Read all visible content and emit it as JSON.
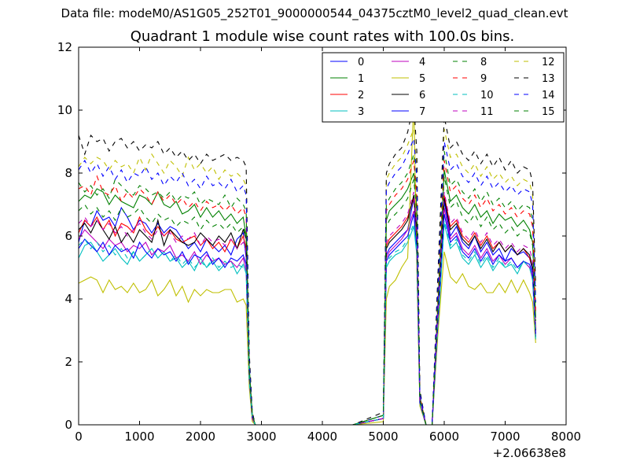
{
  "figure": {
    "suptitle": "Data file: modeM0/AS1G05_252T01_9000000544_04375cztM0_level2_quad_clean.evt",
    "title": "Quadrant 1 module wise count rates with 100.0s bins."
  },
  "chart_data": {
    "type": "line",
    "title": "Quadrant 1 module wise count rates with 100.0s bins.",
    "xlabel": "",
    "ylabel": "",
    "x_offset_label": "+2.06638e8",
    "xlim": [
      0,
      8000
    ],
    "ylim": [
      0,
      12
    ],
    "xticks": [
      0,
      1000,
      2000,
      3000,
      4000,
      5000,
      6000,
      7000,
      8000
    ],
    "yticks": [
      0,
      2,
      4,
      6,
      8,
      10,
      12
    ],
    "grid": false,
    "legend_placement": "top-right",
    "x": [
      0,
      100,
      200,
      300,
      400,
      500,
      600,
      700,
      800,
      900,
      1000,
      1100,
      1200,
      1300,
      1400,
      1500,
      1600,
      1700,
      1800,
      1900,
      2000,
      2100,
      2200,
      2300,
      2400,
      2500,
      2600,
      2700,
      2750,
      2800,
      2850,
      2900,
      3000,
      3500,
      4000,
      4500,
      5000,
      5050,
      5100,
      5200,
      5300,
      5400,
      5500,
      5550,
      5600,
      5700,
      5800,
      5900,
      6000,
      6100,
      6200,
      6300,
      6400,
      6500,
      6600,
      6700,
      6800,
      6900,
      7000,
      7100,
      7200,
      7300,
      7400,
      7450,
      7500
    ],
    "series": [
      {
        "name": "0",
        "color": "#0000ff",
        "dash": false,
        "values": [
          5.8,
          6.5,
          6.3,
          6.8,
          6.5,
          6.6,
          6.3,
          6.9,
          6.6,
          6.2,
          6.5,
          6.4,
          6.1,
          6.4,
          6.1,
          6.3,
          6.2,
          5.9,
          5.6,
          5.8,
          5.5,
          5.9,
          5.7,
          5.5,
          5.7,
          5.4,
          5.9,
          6.1,
          5.3,
          1.5,
          0.2,
          0,
          0,
          0,
          0,
          0,
          0.2,
          5.4,
          5.6,
          5.8,
          6.0,
          6.2,
          7.2,
          6.0,
          0.8,
          0,
          0,
          3.5,
          7.1,
          6.0,
          6.3,
          5.8,
          5.6,
          6.0,
          5.5,
          5.8,
          5.4,
          5.6,
          5.2,
          5.6,
          5.4,
          5.5,
          5.3,
          4.9,
          2.9
        ]
      },
      {
        "name": "1",
        "color": "#008000",
        "dash": false,
        "values": [
          7.1,
          7.3,
          7.2,
          7.5,
          7.4,
          7.0,
          7.3,
          7.1,
          7.0,
          6.9,
          7.3,
          7.2,
          7.0,
          7.4,
          7.0,
          6.9,
          7.1,
          6.7,
          6.8,
          7.0,
          6.6,
          6.9,
          6.6,
          6.8,
          6.5,
          6.7,
          6.4,
          6.6,
          6.0,
          1.7,
          0.3,
          0,
          0,
          0,
          0,
          0,
          0.3,
          6.5,
          6.8,
          7.0,
          7.2,
          7.5,
          8.0,
          6.9,
          0.9,
          0,
          0,
          4.0,
          8.1,
          7.1,
          7.3,
          6.9,
          6.7,
          7.0,
          6.6,
          6.8,
          6.4,
          6.7,
          6.5,
          6.6,
          6.3,
          6.5,
          6.2,
          5.8,
          3.4
        ]
      },
      {
        "name": "2",
        "color": "#ff0000",
        "dash": false,
        "values": [
          6.1,
          6.5,
          6.3,
          6.6,
          6.2,
          6.5,
          6.0,
          6.4,
          6.3,
          6.1,
          6.6,
          6.2,
          6.0,
          6.3,
          6.0,
          6.2,
          5.9,
          5.8,
          5.9,
          6.0,
          5.7,
          5.9,
          5.6,
          5.8,
          5.5,
          5.9,
          5.6,
          6.0,
          5.6,
          1.6,
          0.2,
          0,
          0,
          0,
          0,
          0,
          0.2,
          5.7,
          5.9,
          6.1,
          6.3,
          6.6,
          7.2,
          6.2,
          0.8,
          0,
          0,
          3.7,
          7.3,
          6.3,
          6.5,
          6.0,
          5.8,
          6.1,
          5.7,
          6.0,
          5.6,
          5.8,
          5.5,
          5.7,
          5.4,
          5.6,
          5.3,
          5.0,
          3.0
        ]
      },
      {
        "name": "3",
        "color": "#00bfbf",
        "dash": false,
        "values": [
          5.3,
          5.7,
          5.8,
          5.5,
          5.2,
          5.4,
          5.6,
          5.3,
          5.1,
          5.5,
          5.2,
          5.4,
          5.6,
          5.3,
          5.5,
          5.2,
          5.3,
          5.0,
          5.2,
          4.9,
          5.3,
          5.0,
          5.2,
          4.9,
          5.1,
          5.2,
          4.8,
          5.1,
          4.8,
          1.4,
          0.2,
          0,
          0,
          0,
          0,
          0,
          0.2,
          5.0,
          5.2,
          5.4,
          5.5,
          5.8,
          6.3,
          5.4,
          0.7,
          0,
          0,
          3.2,
          6.4,
          5.6,
          5.8,
          5.3,
          5.1,
          5.4,
          5.0,
          5.3,
          4.9,
          5.2,
          5.0,
          5.1,
          4.8,
          5.2,
          5.0,
          4.6,
          2.7
        ]
      },
      {
        "name": "4",
        "color": "#bf00bf",
        "dash": false,
        "values": [
          5.9,
          6.2,
          6.0,
          5.8,
          5.6,
          5.9,
          5.7,
          5.8,
          5.5,
          5.7,
          5.6,
          5.8,
          5.4,
          5.6,
          5.5,
          5.7,
          5.3,
          5.4,
          5.2,
          5.5,
          5.1,
          5.4,
          5.2,
          5.3,
          5.1,
          5.2,
          5.0,
          5.3,
          4.9,
          1.5,
          0.2,
          0,
          0,
          0,
          0,
          0,
          0.2,
          5.3,
          5.5,
          5.7,
          5.9,
          6.2,
          6.8,
          5.7,
          0.7,
          0,
          0,
          3.4,
          6.9,
          5.9,
          6.1,
          5.6,
          5.4,
          5.7,
          5.3,
          5.6,
          5.2,
          5.4,
          5.1,
          5.3,
          5.0,
          5.2,
          5.0,
          4.7,
          2.8
        ]
      },
      {
        "name": "5",
        "color": "#bfbf00",
        "dash": false,
        "values": [
          4.5,
          4.6,
          4.7,
          4.6,
          4.2,
          4.6,
          4.3,
          4.4,
          4.2,
          4.5,
          4.2,
          4.3,
          4.6,
          4.1,
          4.3,
          4.6,
          4.1,
          4.4,
          3.9,
          4.3,
          4.1,
          4.3,
          4.2,
          4.2,
          4.3,
          4.3,
          3.9,
          4.0,
          3.8,
          1.2,
          0.1,
          0,
          0,
          0,
          0,
          0,
          0.1,
          4.0,
          4.4,
          4.6,
          5.0,
          5.3,
          10.3,
          5.0,
          0.6,
          0,
          0,
          3.0,
          5.5,
          4.7,
          4.5,
          4.8,
          4.4,
          4.3,
          4.5,
          4.2,
          4.2,
          4.5,
          4.2,
          4.6,
          4.2,
          4.6,
          4.2,
          3.9,
          2.6
        ]
      },
      {
        "name": "6",
        "color": "#000000",
        "dash": false,
        "values": [
          6.2,
          6.4,
          6.1,
          6.5,
          6.2,
          5.9,
          6.3,
          5.8,
          6.1,
          5.8,
          6.2,
          6.0,
          5.8,
          6.5,
          5.7,
          6.2,
          6.0,
          5.8,
          5.7,
          5.8,
          6.1,
          5.9,
          5.7,
          6.0,
          5.8,
          6.1,
          5.6,
          6.2,
          5.9,
          1.6,
          0.2,
          0,
          0,
          0,
          0,
          0,
          0.2,
          5.6,
          5.8,
          6.0,
          6.2,
          6.5,
          7.3,
          6.1,
          0.8,
          0,
          0,
          3.6,
          7.2,
          6.2,
          6.4,
          5.9,
          5.7,
          6.0,
          5.6,
          5.9,
          5.5,
          5.8,
          5.5,
          5.7,
          5.4,
          5.6,
          5.4,
          5.0,
          3.0
        ]
      },
      {
        "name": "7",
        "color": "#0000ff",
        "dash": false,
        "values": [
          5.6,
          5.9,
          5.7,
          5.5,
          5.8,
          5.4,
          5.7,
          5.5,
          5.6,
          5.3,
          5.8,
          5.5,
          5.3,
          5.6,
          5.4,
          5.5,
          5.2,
          5.5,
          5.1,
          5.4,
          5.3,
          5.5,
          5.1,
          5.3,
          5.0,
          5.3,
          5.2,
          5.4,
          5.1,
          1.5,
          0.2,
          0,
          0,
          0,
          0,
          0,
          0.2,
          5.2,
          5.4,
          5.6,
          5.8,
          6.0,
          6.7,
          5.6,
          0.7,
          0,
          0,
          3.4,
          6.7,
          5.8,
          6.0,
          5.5,
          5.3,
          5.6,
          5.2,
          5.5,
          5.1,
          5.4,
          5.2,
          5.3,
          5.0,
          5.2,
          5.1,
          4.8,
          2.8
        ]
      },
      {
        "name": "8",
        "color": "#008000",
        "dash": true,
        "values": [
          7.7,
          7.4,
          7.6,
          7.3,
          7.5,
          7.2,
          7.8,
          7.6,
          7.4,
          7.3,
          7.6,
          7.5,
          7.3,
          7.4,
          7.2,
          7.4,
          7.1,
          7.3,
          7.2,
          7.4,
          7.0,
          7.2,
          7.1,
          7.0,
          7.3,
          6.9,
          7.2,
          7.0,
          6.8,
          1.9,
          0.3,
          0,
          0,
          0,
          0,
          0,
          0.3,
          7.0,
          7.2,
          7.5,
          7.7,
          8.0,
          8.6,
          7.4,
          0.9,
          0,
          0,
          4.2,
          8.7,
          7.6,
          7.8,
          7.4,
          7.2,
          7.5,
          7.1,
          7.4,
          7.0,
          7.2,
          6.9,
          7.1,
          6.8,
          7.0,
          6.9,
          6.5,
          3.7
        ]
      },
      {
        "name": "9",
        "color": "#ff0000",
        "dash": true,
        "values": [
          7.5,
          7.6,
          7.3,
          7.9,
          7.4,
          7.3,
          7.6,
          7.1,
          7.4,
          7.2,
          7.5,
          7.3,
          7.0,
          7.4,
          7.1,
          7.3,
          7.0,
          7.2,
          6.9,
          7.1,
          6.8,
          7.1,
          6.9,
          7.0,
          6.8,
          7.0,
          6.7,
          6.9,
          6.6,
          1.8,
          0.3,
          0,
          0,
          0,
          0,
          0,
          0.3,
          6.8,
          7.0,
          7.3,
          7.5,
          7.8,
          8.4,
          7.2,
          0.9,
          0,
          0,
          4.1,
          8.4,
          7.4,
          7.6,
          7.2,
          7.0,
          7.3,
          6.9,
          7.2,
          6.8,
          7.0,
          6.7,
          6.9,
          6.6,
          6.8,
          6.7,
          6.3,
          3.6
        ]
      },
      {
        "name": "10",
        "color": "#00bfbf",
        "dash": true,
        "values": [
          5.7,
          5.9,
          5.6,
          5.8,
          5.5,
          5.7,
          5.4,
          5.6,
          5.3,
          5.5,
          5.2,
          5.4,
          5.6,
          5.3,
          5.5,
          5.2,
          5.4,
          5.1,
          5.3,
          5.0,
          5.2,
          5.0,
          5.3,
          5.0,
          5.2,
          5.0,
          5.1,
          5.0,
          4.9,
          1.4,
          0.2,
          0,
          0,
          0,
          0,
          0,
          0.2,
          5.1,
          5.3,
          5.5,
          5.6,
          5.9,
          6.4,
          5.5,
          0.7,
          0,
          0,
          3.3,
          6.5,
          5.7,
          5.9,
          5.4,
          5.2,
          5.5,
          5.1,
          5.4,
          5.0,
          5.3,
          5.0,
          5.2,
          4.9,
          5.2,
          5.0,
          4.6,
          2.7
        ]
      },
      {
        "name": "11",
        "color": "#bf00bf",
        "dash": true,
        "values": [
          6.4,
          6.6,
          6.3,
          6.5,
          6.2,
          6.4,
          6.1,
          6.3,
          6.0,
          6.2,
          6.4,
          6.1,
          5.9,
          6.2,
          6.0,
          6.1,
          5.8,
          6.0,
          5.9,
          6.1,
          5.7,
          6.0,
          5.8,
          5.9,
          5.7,
          5.9,
          5.6,
          5.8,
          5.5,
          1.6,
          0.2,
          0,
          0,
          0,
          0,
          0,
          0.2,
          5.8,
          6.0,
          6.2,
          6.4,
          6.7,
          7.4,
          6.3,
          0.8,
          0,
          0,
          3.7,
          7.4,
          6.4,
          6.6,
          6.1,
          5.9,
          6.2,
          5.8,
          6.1,
          5.7,
          5.9,
          5.6,
          5.8,
          5.5,
          5.7,
          5.6,
          5.2,
          3.1
        ]
      },
      {
        "name": "12",
        "color": "#bfbf00",
        "dash": true,
        "values": [
          8.2,
          8.5,
          8.3,
          8.5,
          8.4,
          8.1,
          8.4,
          8.2,
          8.3,
          8.0,
          8.5,
          8.1,
          8.6,
          8.3,
          8.0,
          8.4,
          8.2,
          7.9,
          8.5,
          8.1,
          8.3,
          8.0,
          8.2,
          7.8,
          8.1,
          7.9,
          8.0,
          7.8,
          7.6,
          2.1,
          0.3,
          0,
          0,
          0,
          0,
          0,
          0.3,
          7.8,
          8.0,
          8.3,
          8.5,
          8.9,
          9.4,
          8.2,
          1.0,
          0,
          0,
          4.7,
          9.4,
          8.5,
          8.6,
          8.2,
          8.0,
          8.3,
          7.9,
          8.2,
          7.8,
          8.0,
          7.7,
          7.9,
          7.6,
          7.8,
          7.7,
          7.3,
          4.1
        ]
      },
      {
        "name": "13",
        "color": "#000000",
        "dash": true,
        "values": [
          9.2,
          8.6,
          9.2,
          9.0,
          9.1,
          8.7,
          9.0,
          9.1,
          8.8,
          9.0,
          8.7,
          8.9,
          8.8,
          9.0,
          8.6,
          8.8,
          8.5,
          8.7,
          8.4,
          8.6,
          8.3,
          8.6,
          8.4,
          8.5,
          8.6,
          8.4,
          8.5,
          8.4,
          8.2,
          2.3,
          0.4,
          0,
          0,
          0,
          0,
          0,
          0.4,
          8.0,
          8.3,
          8.6,
          8.8,
          9.3,
          10.2,
          8.7,
          1.1,
          0,
          0,
          5.0,
          9.8,
          8.8,
          9.0,
          8.6,
          8.4,
          8.7,
          8.3,
          8.6,
          8.2,
          8.5,
          8.1,
          8.4,
          8.0,
          8.2,
          8.1,
          7.7,
          4.4
        ]
      },
      {
        "name": "14",
        "color": "#0000ff",
        "dash": true,
        "values": [
          8.1,
          8.4,
          8.0,
          8.3,
          7.9,
          8.2,
          7.8,
          8.1,
          7.7,
          8.0,
          7.9,
          8.2,
          7.8,
          8.0,
          7.6,
          7.9,
          7.7,
          8.0,
          7.6,
          7.8,
          7.5,
          7.9,
          7.6,
          7.7,
          7.5,
          7.8,
          7.4,
          7.6,
          7.3,
          2.0,
          0.3,
          0,
          0,
          0,
          0,
          0,
          0.3,
          7.5,
          7.7,
          8.0,
          8.2,
          8.6,
          9.1,
          7.9,
          1.0,
          0,
          0,
          4.5,
          9.0,
          8.1,
          8.3,
          7.9,
          7.7,
          8.0,
          7.6,
          7.9,
          7.5,
          7.7,
          7.4,
          7.6,
          7.3,
          7.5,
          7.4,
          7.0,
          3.9
        ]
      },
      {
        "name": "15",
        "color": "#008000",
        "dash": true,
        "values": [
          6.8,
          7.0,
          6.7,
          6.9,
          6.6,
          6.8,
          6.5,
          6.9,
          6.6,
          6.7,
          6.9,
          6.6,
          6.4,
          6.7,
          6.5,
          6.6,
          6.3,
          6.5,
          6.4,
          6.6,
          6.2,
          6.5,
          6.3,
          6.4,
          6.2,
          6.4,
          6.1,
          6.3,
          6.0,
          1.7,
          0.3,
          0,
          0,
          0,
          0,
          0,
          0.3,
          6.3,
          6.5,
          6.7,
          6.9,
          7.2,
          7.8,
          6.7,
          0.8,
          0,
          0,
          3.9,
          7.9,
          6.9,
          7.1,
          6.6,
          6.4,
          6.7,
          6.3,
          6.6,
          6.2,
          6.4,
          6.1,
          6.3,
          6.0,
          6.2,
          6.1,
          5.7,
          3.3
        ]
      }
    ]
  }
}
